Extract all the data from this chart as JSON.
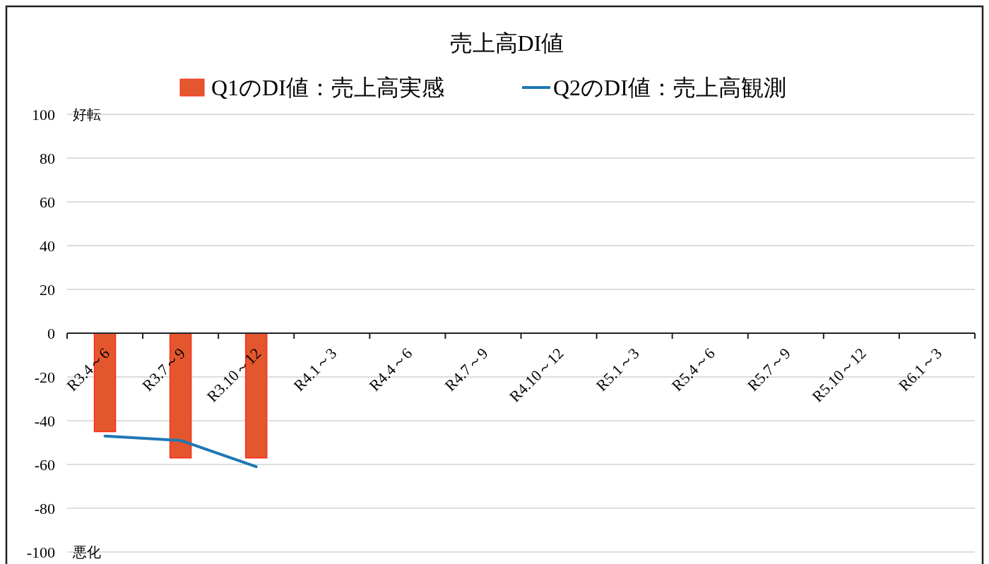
{
  "chart_data": {
    "type": "bar",
    "title": "売上高DI値",
    "categories": [
      "R3.4～6",
      "R3.7～9",
      "R3.10～12",
      "R4.1～3",
      "R4.4～6",
      "R4.7～9",
      "R4.10～12",
      "R5.1～3",
      "R5.4～6",
      "R5.7～9",
      "R5.10～12",
      "R6.1～3"
    ],
    "series": [
      {
        "name": "Q1のDI値：売上高実感",
        "color": "#e4572e",
        "values": [
          -45,
          -57,
          -57,
          null,
          null,
          null,
          null,
          null,
          null,
          null,
          null,
          null
        ]
      },
      {
        "name": "Q2のDI値：売上高観測",
        "type": "line",
        "color": "#1f77b4",
        "values": [
          -47,
          -49,
          -61,
          null,
          null,
          null,
          null,
          null,
          null,
          null,
          null,
          null
        ]
      }
    ],
    "ylim": [
      -100,
      100
    ],
    "yticks": [
      -100,
      -80,
      -60,
      -40,
      -20,
      0,
      20,
      40,
      60,
      80,
      100
    ],
    "grid": "y",
    "legend": "top",
    "annotations": [
      "好転",
      "悪化"
    ]
  }
}
